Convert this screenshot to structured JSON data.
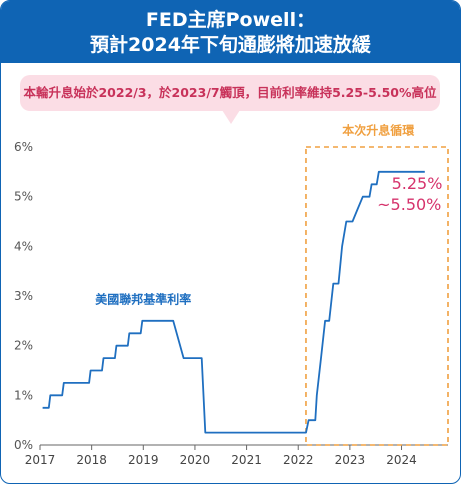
{
  "header": {
    "line1": "FED主席Powell：",
    "line2": "預計2024年下旬通膨將加速放緩"
  },
  "note": "本輪升息始於2022/3，於2023/7觸頂，目前利率維持5.25-5.50%高位",
  "colors": {
    "header_bg": "#0f64b4",
    "line": "#1f6fc0",
    "accent_orange": "#f0a040",
    "accent_pink": "#d6336c",
    "note_bg": "#fbdde5"
  },
  "chart_data": {
    "type": "line",
    "title": "",
    "xlabel": "",
    "ylabel": "",
    "xlim": [
      2017.0,
      2024.9
    ],
    "ylim": [
      0,
      6
    ],
    "x_ticks": [
      2017,
      2018,
      2019,
      2020,
      2021,
      2022,
      2023,
      2024
    ],
    "y_ticks": [
      {
        "value": 0,
        "label": "0%"
      },
      {
        "value": 1,
        "label": "1%"
      },
      {
        "value": 2,
        "label": "2%"
      },
      {
        "value": 3,
        "label": "3%"
      },
      {
        "value": 4,
        "label": "4%"
      },
      {
        "value": 5,
        "label": "5%"
      },
      {
        "value": 6,
        "label": "6%"
      }
    ],
    "series": [
      {
        "name": "美國聯邦基準利率",
        "points": [
          [
            2017.05,
            0.75
          ],
          [
            2017.17,
            0.75
          ],
          [
            2017.2,
            1.0
          ],
          [
            2017.43,
            1.0
          ],
          [
            2017.46,
            1.25
          ],
          [
            2017.95,
            1.25
          ],
          [
            2017.98,
            1.5
          ],
          [
            2018.2,
            1.5
          ],
          [
            2018.23,
            1.75
          ],
          [
            2018.45,
            1.75
          ],
          [
            2018.48,
            2.0
          ],
          [
            2018.7,
            2.0
          ],
          [
            2018.73,
            2.25
          ],
          [
            2018.95,
            2.25
          ],
          [
            2018.98,
            2.5
          ],
          [
            2019.58,
            2.5
          ],
          [
            2019.78,
            1.75
          ],
          [
            2020.13,
            1.75
          ],
          [
            2020.2,
            0.25
          ],
          [
            2022.15,
            0.25
          ],
          [
            2022.2,
            0.5
          ],
          [
            2022.33,
            0.5
          ],
          [
            2022.36,
            1.0
          ],
          [
            2022.44,
            1.75
          ],
          [
            2022.52,
            2.5
          ],
          [
            2022.6,
            2.5
          ],
          [
            2022.68,
            3.25
          ],
          [
            2022.78,
            3.25
          ],
          [
            2022.85,
            4.0
          ],
          [
            2022.93,
            4.5
          ],
          [
            2023.05,
            4.5
          ],
          [
            2023.15,
            4.75
          ],
          [
            2023.25,
            5.0
          ],
          [
            2023.38,
            5.0
          ],
          [
            2023.42,
            5.25
          ],
          [
            2023.52,
            5.25
          ],
          [
            2023.56,
            5.5
          ],
          [
            2024.45,
            5.5
          ]
        ]
      }
    ],
    "annotations": [
      {
        "text": "美國聯邦基準利率",
        "x": 2019.0,
        "y": 2.85
      },
      {
        "text": "本次升息循環",
        "x": 2023.55,
        "y": 6.25
      },
      {
        "text": "5.25%",
        "x": 2024.3,
        "y": 5.15
      },
      {
        "text": "~5.50%",
        "x": 2024.15,
        "y": 4.73
      }
    ],
    "highlight_box": {
      "x0": 2022.15,
      "x1": 2024.9,
      "y0": 0,
      "y1": 6
    },
    "grid": false,
    "legend": "none"
  }
}
